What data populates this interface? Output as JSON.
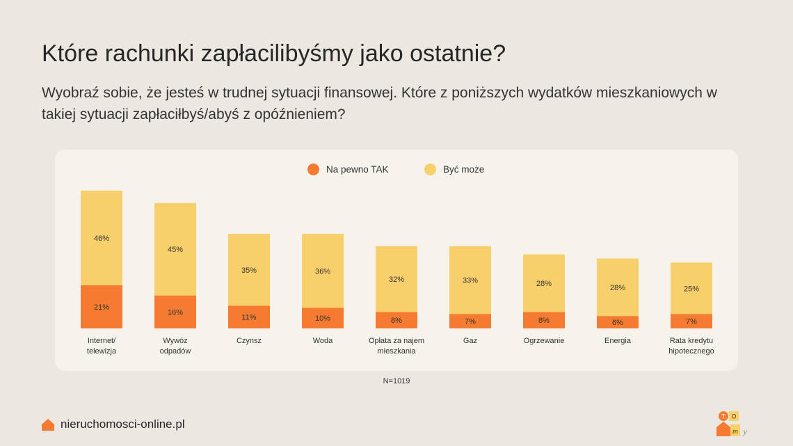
{
  "header": {
    "title": "Które rachunki zapłacilibyśmy jako ostatnie?",
    "subtitle": "Wyobraź sobie, że jesteś w trudnej sytuacji finansowej. Które z poniższych wydatków mieszkaniowych w takiej sytuacji zapłaciłbyś/abyś z opóźnieniem?"
  },
  "legend": [
    {
      "label": "Na pewno TAK",
      "color": "#f47b2f"
    },
    {
      "label": "Być może",
      "color": "#f7d06c"
    }
  ],
  "chart_data": {
    "type": "bar",
    "stacked": true,
    "categories": [
      [
        "Internet/",
        "telewizja"
      ],
      [
        "Wywóz",
        "odpadów"
      ],
      [
        "Czynsz"
      ],
      [
        "Woda"
      ],
      [
        "Opłata za najem",
        "mieszkania"
      ],
      [
        "Gaz"
      ],
      [
        "Ogrzewanie"
      ],
      [
        "Energia"
      ],
      [
        "Rata kredytu",
        "hipotecznego"
      ]
    ],
    "series": [
      {
        "name": "Na pewno TAK",
        "color": "#f47b2f",
        "values": [
          21,
          16,
          11,
          10,
          8,
          7,
          8,
          6,
          7
        ]
      },
      {
        "name": "Być może",
        "color": "#f7d06c",
        "values": [
          46,
          45,
          35,
          36,
          32,
          33,
          28,
          28,
          25
        ]
      }
    ],
    "value_suffix": "%",
    "ylim": [
      0,
      70
    ],
    "grid": false,
    "legend_position": "top-center"
  },
  "footer": {
    "note": "N=1019",
    "brand": "nieruchomosci-online.pl",
    "logo_letters": [
      "T",
      "O",
      "m",
      "y"
    ]
  }
}
